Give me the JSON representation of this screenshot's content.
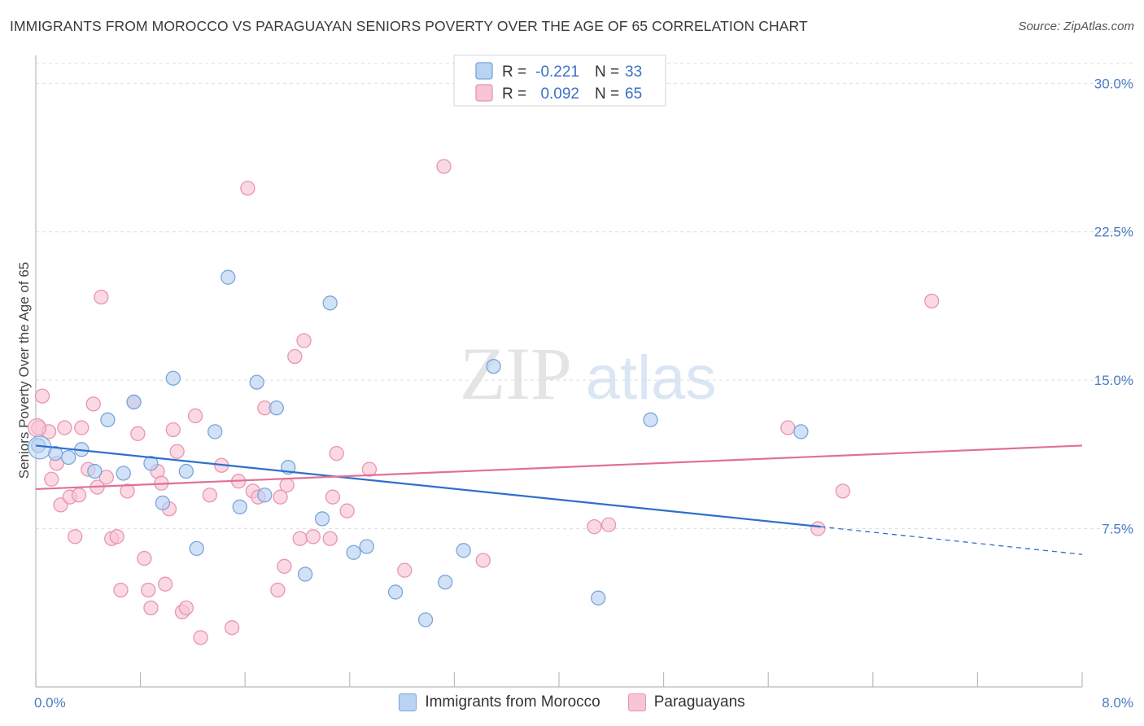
{
  "title": "IMMIGRANTS FROM MOROCCO VS PARAGUAYAN SENIORS POVERTY OVER THE AGE OF 65 CORRELATION CHART",
  "source": "Source: ZipAtlas.com",
  "watermark": {
    "zip": "ZIP",
    "atlas": "atlas"
  },
  "colors": {
    "blue_fill": "#b9d3f3",
    "blue_stroke": "#7aa5dc",
    "blue_line": "#2f6fcd",
    "pink_fill": "#f7c5d4",
    "pink_stroke": "#e895b0",
    "pink_line": "#e07099",
    "tick_text": "#4a7cc4",
    "grid": "#dddddd"
  },
  "legend": {
    "rows": [
      {
        "r_label": "R =",
        "r_value": "-0.221",
        "n_label": "N =",
        "n_value": "33"
      },
      {
        "r_label": "R =",
        "r_value": "0.092",
        "n_label": "N =",
        "n_value": "65"
      }
    ]
  },
  "chart_data": {
    "type": "scatter",
    "title": "IMMIGRANTS FROM MOROCCO VS PARAGUAYAN SENIORS POVERTY OVER THE AGE OF 65 CORRELATION CHART",
    "xlabel": "",
    "ylabel": "Seniors Poverty Over the Age of 65",
    "xlim": [
      0,
      8
    ],
    "ylim": [
      0,
      31
    ],
    "x_tick_labels": [
      "0.0%",
      "8.0%"
    ],
    "y_ticks": [
      7.5,
      15.0,
      22.5,
      30.0
    ],
    "y_tick_labels": [
      "7.5%",
      "15.0%",
      "22.5%",
      "30.0%"
    ],
    "legend_position": "top-center",
    "series": [
      {
        "name": "Immigrants from Morocco",
        "color": "blue",
        "trend": {
          "x": [
            0.0,
            6.0
          ],
          "y": [
            11.7,
            7.6
          ],
          "dashed_extension": {
            "x": [
              6.0,
              8.0
            ],
            "y": [
              7.6,
              6.2
            ]
          }
        },
        "points": [
          [
            0.02,
            11.7
          ],
          [
            0.15,
            11.3
          ],
          [
            0.25,
            11.1
          ],
          [
            0.35,
            11.5
          ],
          [
            0.45,
            10.4
          ],
          [
            0.55,
            13.0
          ],
          [
            0.67,
            10.3
          ],
          [
            0.75,
            13.9
          ],
          [
            0.88,
            10.8
          ],
          [
            0.97,
            8.8
          ],
          [
            1.05,
            15.1
          ],
          [
            1.15,
            10.4
          ],
          [
            1.23,
            6.5
          ],
          [
            1.37,
            12.4
          ],
          [
            1.47,
            20.2
          ],
          [
            1.56,
            8.6
          ],
          [
            1.69,
            14.9
          ],
          [
            1.75,
            9.2
          ],
          [
            1.84,
            13.6
          ],
          [
            1.93,
            10.6
          ],
          [
            2.06,
            5.2
          ],
          [
            2.19,
            8.0
          ],
          [
            2.25,
            18.9
          ],
          [
            2.43,
            6.3
          ],
          [
            2.53,
            6.6
          ],
          [
            2.75,
            4.3
          ],
          [
            2.98,
            2.9
          ],
          [
            3.13,
            4.8
          ],
          [
            3.27,
            6.4
          ],
          [
            3.5,
            15.7
          ],
          [
            4.3,
            4.0
          ],
          [
            4.7,
            13.0
          ],
          [
            5.85,
            12.4
          ]
        ]
      },
      {
        "name": "Paraguayans",
        "color": "pink",
        "trend": {
          "x": [
            0.0,
            8.0
          ],
          "y": [
            9.5,
            11.7
          ]
        },
        "points": [
          [
            0.02,
            12.6
          ],
          [
            0.05,
            14.2
          ],
          [
            0.1,
            12.4
          ],
          [
            0.12,
            10.0
          ],
          [
            0.16,
            10.8
          ],
          [
            0.19,
            8.7
          ],
          [
            0.22,
            12.6
          ],
          [
            0.26,
            9.1
          ],
          [
            0.3,
            7.1
          ],
          [
            0.33,
            9.2
          ],
          [
            0.35,
            12.6
          ],
          [
            0.4,
            10.5
          ],
          [
            0.44,
            13.8
          ],
          [
            0.47,
            9.6
          ],
          [
            0.5,
            19.2
          ],
          [
            0.54,
            10.1
          ],
          [
            0.58,
            7.0
          ],
          [
            0.62,
            7.1
          ],
          [
            0.65,
            4.4
          ],
          [
            0.7,
            9.4
          ],
          [
            0.75,
            13.9
          ],
          [
            0.78,
            12.3
          ],
          [
            0.83,
            6.0
          ],
          [
            0.86,
            4.4
          ],
          [
            0.88,
            3.5
          ],
          [
            0.93,
            10.4
          ],
          [
            0.96,
            9.8
          ],
          [
            0.99,
            4.7
          ],
          [
            1.02,
            8.5
          ],
          [
            1.05,
            12.5
          ],
          [
            1.08,
            11.4
          ],
          [
            1.12,
            3.3
          ],
          [
            1.15,
            3.5
          ],
          [
            1.22,
            13.2
          ],
          [
            1.26,
            2.0
          ],
          [
            1.33,
            9.2
          ],
          [
            1.42,
            10.7
          ],
          [
            1.5,
            2.5
          ],
          [
            1.55,
            9.9
          ],
          [
            1.62,
            24.7
          ],
          [
            1.66,
            9.4
          ],
          [
            1.7,
            9.1
          ],
          [
            1.75,
            13.6
          ],
          [
            1.85,
            4.4
          ],
          [
            1.87,
            9.1
          ],
          [
            1.9,
            5.6
          ],
          [
            1.92,
            9.7
          ],
          [
            1.98,
            16.2
          ],
          [
            2.02,
            7.0
          ],
          [
            2.05,
            17.0
          ],
          [
            2.12,
            7.1
          ],
          [
            2.25,
            7.0
          ],
          [
            2.27,
            9.1
          ],
          [
            2.3,
            11.3
          ],
          [
            2.38,
            8.4
          ],
          [
            2.55,
            10.5
          ],
          [
            2.82,
            5.4
          ],
          [
            3.12,
            25.8
          ],
          [
            3.42,
            5.9
          ],
          [
            4.27,
            7.6
          ],
          [
            4.38,
            7.7
          ],
          [
            5.75,
            12.6
          ],
          [
            5.98,
            7.5
          ],
          [
            6.17,
            9.4
          ],
          [
            6.85,
            19.0
          ]
        ]
      }
    ]
  },
  "bottom_legend": [
    {
      "label": "Immigrants from Morocco",
      "color": "blue"
    },
    {
      "label": "Paraguayans",
      "color": "pink"
    }
  ]
}
